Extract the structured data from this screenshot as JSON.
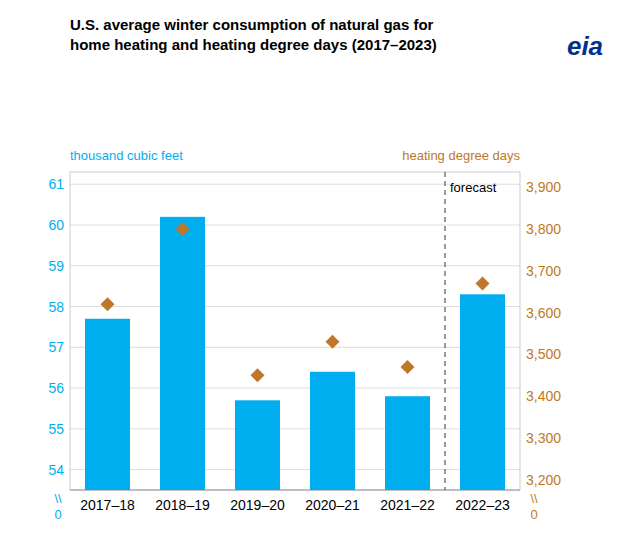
{
  "chart_data": {
    "type": "bar",
    "title": "U.S. average winter consumption of natural gas for\nhome heating and heating degree days (2017–2023)",
    "categories": [
      "2017–18",
      "2018–19",
      "2019–20",
      "2020–21",
      "2021–22",
      "2022–23"
    ],
    "series": [
      {
        "type": "bar",
        "color": "#00AEEF",
        "values": [
          57.7,
          60.2,
          55.7,
          56.4,
          55.8,
          58.3
        ]
      },
      {
        "type": "scatter",
        "marker": "diamond",
        "color": "#C07828",
        "axis": "y2",
        "values": [
          3620,
          3800,
          3450,
          3530,
          3470,
          3670
        ]
      }
    ],
    "ylabel": "thousand cubic feet",
    "y2label": "heating degree days",
    "ylim": [
      53.5,
      61.3
    ],
    "yticks": [
      54,
      55,
      56,
      57,
      58,
      59,
      60,
      61
    ],
    "y2lim": [
      3175,
      3937
    ],
    "y2ticks": [
      {
        "value": 3200,
        "label": "3,200"
      },
      {
        "value": 3300,
        "label": "3,300"
      },
      {
        "value": 3400,
        "label": "3,400"
      },
      {
        "value": 3500,
        "label": "3,500"
      },
      {
        "value": 3600,
        "label": "3,600"
      },
      {
        "value": 3700,
        "label": "3,700"
      },
      {
        "value": 3800,
        "label": "3,800"
      },
      {
        "value": 3900,
        "label": "3,900"
      }
    ],
    "grid": true,
    "annotations": [
      {
        "text": "forecast",
        "x": "2022–23"
      },
      {
        "text": "\\\\",
        "axis": "y"
      },
      {
        "text": "0",
        "axis": "y"
      },
      {
        "text": "\\\\",
        "axis": "y2"
      },
      {
        "text": "0",
        "axis": "y2"
      },
      {
        "text": "eia",
        "color": "#003087"
      }
    ]
  }
}
